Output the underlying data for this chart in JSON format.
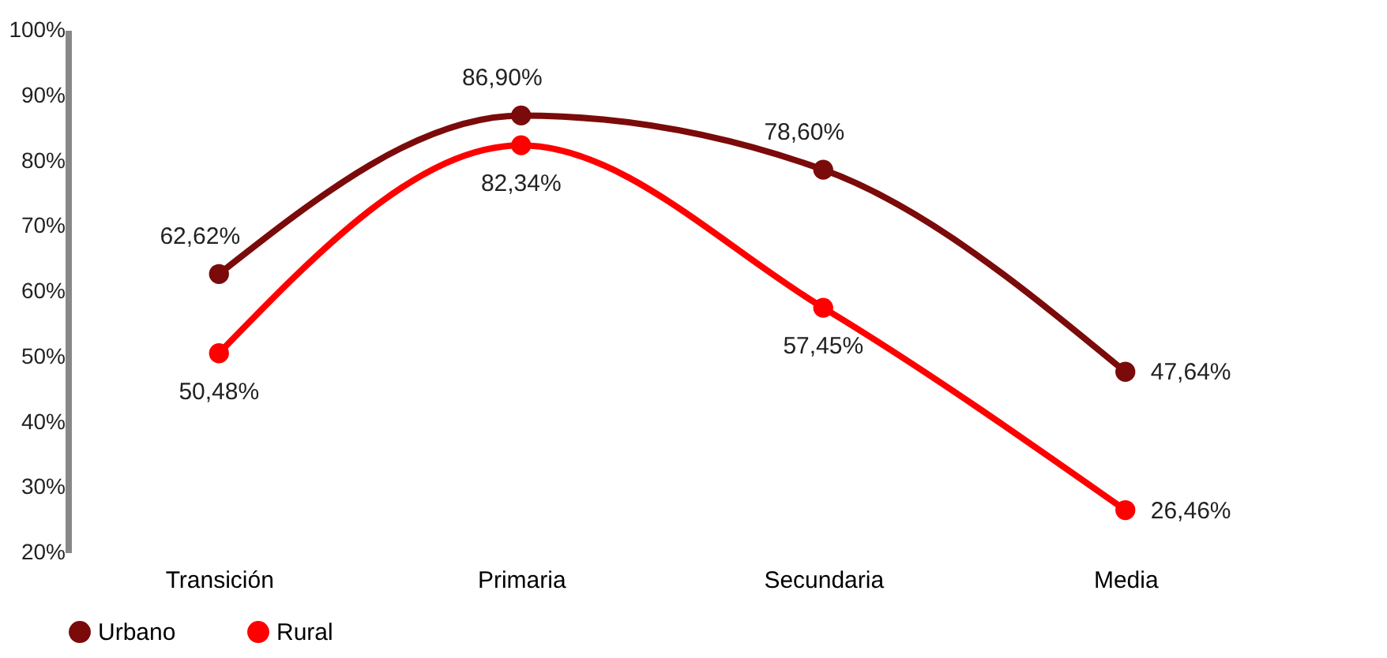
{
  "chart_data": {
    "type": "line",
    "categories": [
      "Transición",
      "Primaria",
      "Secundaria",
      "Media"
    ],
    "series": [
      {
        "name": "Urbano",
        "color": "#7b0a0a",
        "values": [
          62.62,
          86.9,
          78.6,
          47.64
        ],
        "value_labels": [
          "62,62%",
          "86,90%",
          "78,60%",
          "47,64%"
        ]
      },
      {
        "name": "Rural",
        "color": "#ff0000",
        "values": [
          50.48,
          82.34,
          57.45,
          26.46
        ],
        "value_labels": [
          "50,48%",
          "82,34%",
          "57,45%",
          "26,46%"
        ]
      }
    ],
    "ylim": [
      20,
      100
    ],
    "yticks": [
      {
        "value": 20,
        "label": "20%"
      },
      {
        "value": 30,
        "label": "30%"
      },
      {
        "value": 40,
        "label": "40%"
      },
      {
        "value": 50,
        "label": "50%"
      },
      {
        "value": 60,
        "label": "60%"
      },
      {
        "value": 70,
        "label": "70%"
      },
      {
        "value": 80,
        "label": "80%"
      },
      {
        "value": 90,
        "label": "90%"
      },
      {
        "value": 100,
        "label": "100%"
      }
    ],
    "grid": false,
    "legend": "bottom",
    "marker": "circle",
    "line_style": "solid"
  }
}
